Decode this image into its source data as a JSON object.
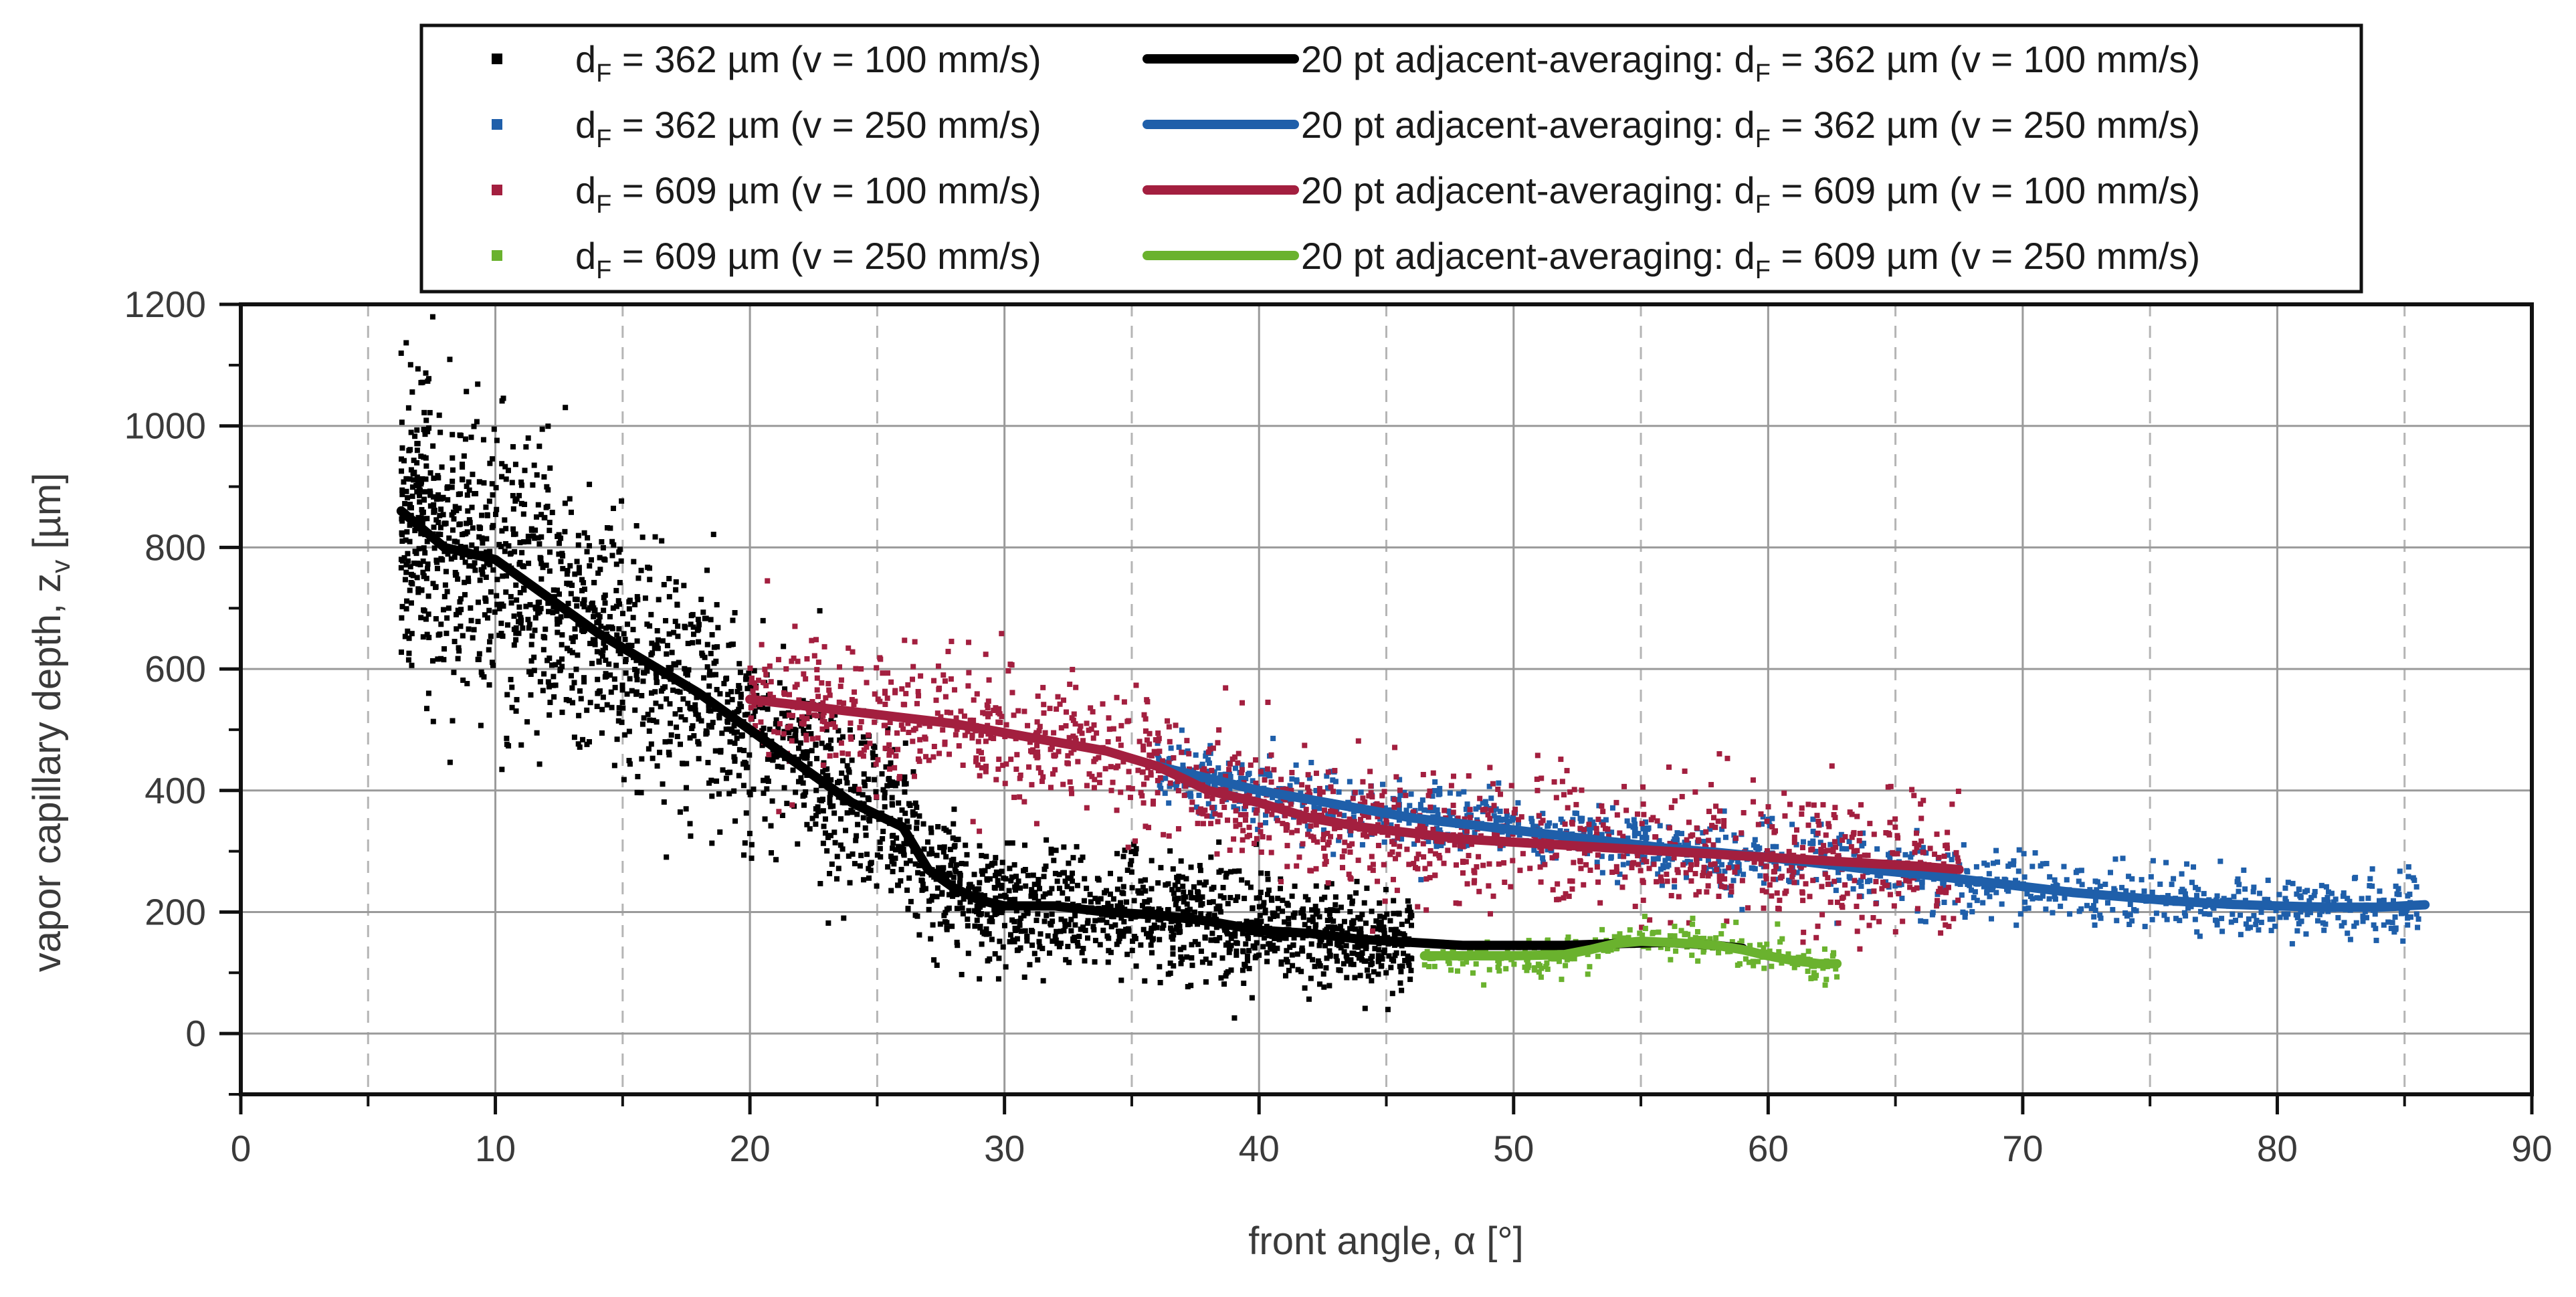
{
  "chart_data": {
    "type": "scatter",
    "title": "",
    "xlabel": {
      "main": "front angle, α [°]"
    },
    "ylabel": {
      "pre": "vapor capillary depth, z",
      "sub": "v",
      "post": " [µm]"
    },
    "xlim": [
      0,
      90
    ],
    "ylim": [
      -100,
      1200
    ],
    "xticks": [
      0,
      10,
      20,
      30,
      40,
      50,
      60,
      70,
      80,
      90
    ],
    "yticks": [
      0,
      200,
      400,
      600,
      800,
      1000,
      1200
    ],
    "grid": true,
    "legend_position": "top-center",
    "series": [
      {
        "key": "s1",
        "color": "#000000",
        "scatter_label": {
          "pre": "d",
          "sub": "F",
          "post": " = 362 µm (v = 100 mm/s)"
        },
        "line_label": {
          "pre": "20 pt adjacent-averaging: d",
          "sub": "F",
          "post": " = 362 µm (v = 100 mm/s)"
        },
        "smooth": [
          [
            6.3,
            860
          ],
          [
            8,
            800
          ],
          [
            10,
            780
          ],
          [
            12,
            720
          ],
          [
            14,
            660
          ],
          [
            16,
            610
          ],
          [
            18,
            560
          ],
          [
            20,
            500
          ],
          [
            22,
            440
          ],
          [
            24,
            380
          ],
          [
            26,
            340
          ],
          [
            27,
            270
          ],
          [
            28,
            240
          ],
          [
            29,
            220
          ],
          [
            30,
            210
          ],
          [
            32,
            210
          ],
          [
            34,
            200
          ],
          [
            36,
            195
          ],
          [
            38,
            185
          ],
          [
            40,
            170
          ],
          [
            42,
            165
          ],
          [
            44,
            155
          ],
          [
            46,
            150
          ],
          [
            48,
            145
          ],
          [
            50,
            145
          ],
          [
            52,
            145
          ],
          [
            54,
            148
          ],
          [
            56,
            150
          ],
          [
            58,
            145
          ],
          [
            59,
            140
          ]
        ],
        "scatter": {
          "count": 2600,
          "spread": 90,
          "x_range": [
            6.3,
            46
          ],
          "seed": 11
        }
      },
      {
        "key": "s2",
        "color": "#1f5faa",
        "scatter_label": {
          "pre": "d",
          "sub": "F",
          "post": " = 362 µm (v = 250 mm/s)"
        },
        "line_label": {
          "pre": "20 pt adjacent-averaging: d",
          "sub": "F",
          "post": " = 362 µm (v = 250 mm/s)"
        },
        "smooth": [
          [
            36,
            440
          ],
          [
            38,
            420
          ],
          [
            40,
            400
          ],
          [
            42,
            385
          ],
          [
            44,
            370
          ],
          [
            46,
            355
          ],
          [
            48,
            345
          ],
          [
            50,
            335
          ],
          [
            52,
            325
          ],
          [
            54,
            315
          ],
          [
            56,
            305
          ],
          [
            58,
            298
          ],
          [
            60,
            290
          ],
          [
            62,
            280
          ],
          [
            64,
            270
          ],
          [
            66,
            262
          ],
          [
            68,
            252
          ],
          [
            70,
            242
          ],
          [
            72,
            232
          ],
          [
            74,
            225
          ],
          [
            76,
            218
          ],
          [
            78,
            213
          ],
          [
            80,
            210
          ],
          [
            82,
            208
          ],
          [
            84,
            208
          ],
          [
            85.8,
            212
          ]
        ],
        "scatter": {
          "count": 1100,
          "spread": 28,
          "x_range": [
            36,
            85.8
          ],
          "seed": 22
        }
      },
      {
        "key": "s3",
        "color": "#a31f3f",
        "scatter_label": {
          "pre": "d",
          "sub": "F",
          "post": " = 609 µm (v = 100 mm/s)"
        },
        "line_label": {
          "pre": "20 pt adjacent-averaging: d",
          "sub": "F",
          "post": " = 609 µm (v = 100 mm/s)"
        },
        "smooth": [
          [
            20,
            550
          ],
          [
            22,
            540
          ],
          [
            24,
            530
          ],
          [
            26,
            520
          ],
          [
            28,
            510
          ],
          [
            30,
            495
          ],
          [
            32,
            480
          ],
          [
            34,
            465
          ],
          [
            36,
            440
          ],
          [
            37,
            420
          ],
          [
            38,
            400
          ],
          [
            40,
            380
          ],
          [
            42,
            355
          ],
          [
            44,
            340
          ],
          [
            46,
            330
          ],
          [
            48,
            320
          ],
          [
            50,
            315
          ],
          [
            52,
            310
          ],
          [
            54,
            305
          ],
          [
            56,
            300
          ],
          [
            58,
            295
          ],
          [
            60,
            290
          ],
          [
            62,
            285
          ],
          [
            64,
            280
          ],
          [
            66,
            275
          ],
          [
            67.5,
            270
          ]
        ],
        "scatter": {
          "count": 1400,
          "spread": 55,
          "x_range": [
            20,
            67.5
          ],
          "seed": 33
        }
      },
      {
        "key": "s4",
        "color": "#6ab22e",
        "scatter_label": {
          "pre": "d",
          "sub": "F",
          "post": " = 609 µm (v = 250 mm/s)"
        },
        "line_label": {
          "pre": "20 pt adjacent-averaging: d",
          "sub": "F",
          "post": " = 609 µm (v = 250 mm/s)"
        },
        "smooth": [
          [
            46.5,
            128
          ],
          [
            48,
            128
          ],
          [
            50,
            128
          ],
          [
            52,
            130
          ],
          [
            53,
            138
          ],
          [
            54,
            148
          ],
          [
            55,
            152
          ],
          [
            56,
            150
          ],
          [
            57,
            148
          ],
          [
            58,
            145
          ],
          [
            59,
            138
          ],
          [
            60,
            128
          ],
          [
            61,
            120
          ],
          [
            62,
            115
          ],
          [
            62.7,
            115
          ]
        ],
        "scatter": {
          "count": 260,
          "spread": 16,
          "x_range": [
            46.5,
            62.7
          ],
          "seed": 44
        }
      }
    ]
  }
}
